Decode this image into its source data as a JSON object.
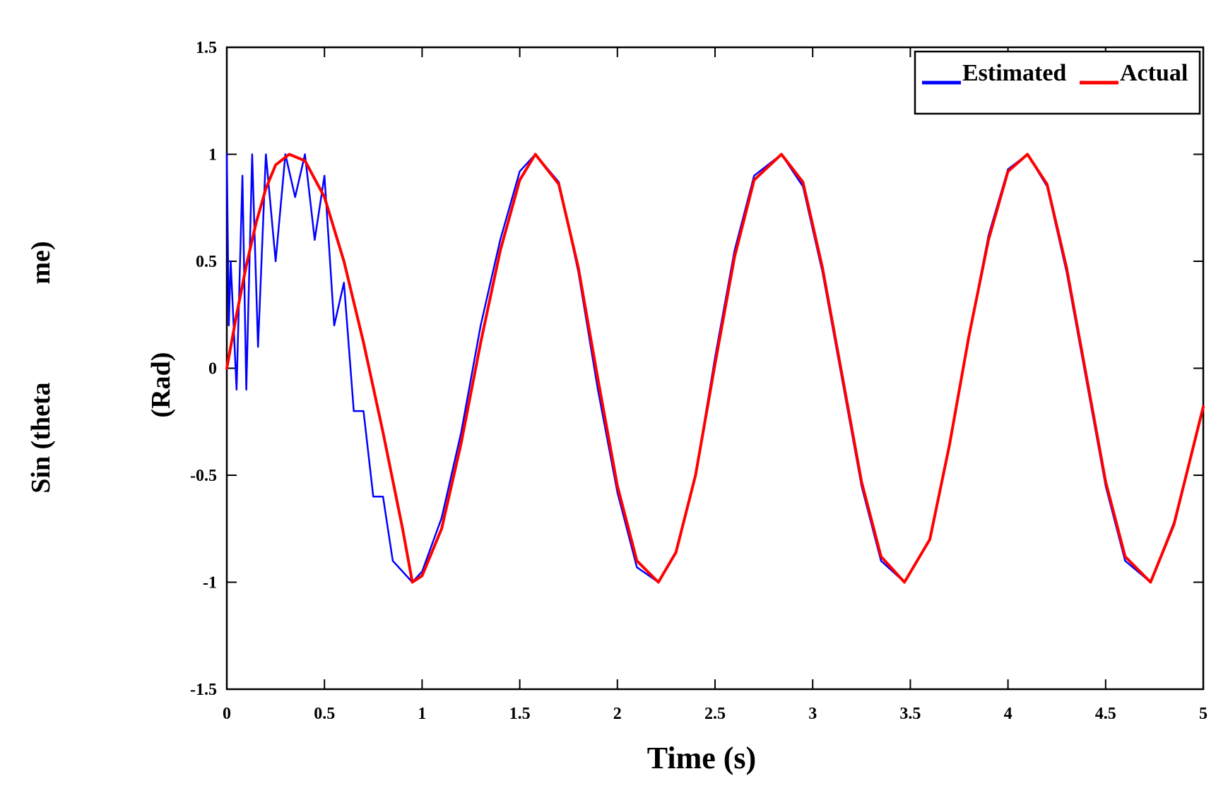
{
  "chart_data": {
    "type": "line",
    "title": "",
    "xlabel": "Time (s)",
    "ylabel_parts": [
      "Sin (theta",
      "me)",
      "(Rad)"
    ],
    "xlim": [
      0,
      5
    ],
    "ylim": [
      -1.5,
      1.5
    ],
    "x_ticks": [
      "0",
      "0.5",
      "1",
      "1.5",
      "2",
      "2.5",
      "3",
      "3.5",
      "4",
      "4.5",
      "5"
    ],
    "y_ticks": [
      "1.5",
      "1",
      "0.5",
      "0",
      "-0.5",
      "-1",
      "-1.5"
    ],
    "grid": false,
    "legend_position": "top-right",
    "series": [
      {
        "name": "Estimated",
        "color": "#0000ff",
        "note_visible": "high-frequency oscillation in first ~1.5 s, then converges to actual curve",
        "x": [
          0.0,
          0.01,
          0.02,
          0.05,
          0.08,
          0.1,
          0.13,
          0.16,
          0.2,
          0.25,
          0.3,
          0.35,
          0.4,
          0.45,
          0.5,
          0.55,
          0.6,
          0.65,
          0.7,
          0.75,
          0.8,
          0.85,
          0.9,
          0.95,
          1.0,
          1.1,
          1.2,
          1.3,
          1.4,
          1.5,
          1.58,
          1.7,
          1.8,
          1.9,
          2.0,
          2.1,
          2.21,
          2.3,
          2.4,
          2.5,
          2.6,
          2.7,
          2.84,
          2.95,
          3.05,
          3.15,
          3.25,
          3.35,
          3.47,
          3.6,
          3.7,
          3.8,
          3.9,
          4.0,
          4.1,
          4.2,
          4.3,
          4.4,
          4.5,
          4.6,
          4.73,
          4.85,
          5.0
        ],
        "y": [
          1.0,
          0.2,
          0.5,
          -0.1,
          0.9,
          -0.1,
          1.0,
          0.1,
          1.0,
          0.5,
          1.0,
          0.8,
          1.0,
          0.6,
          0.9,
          0.2,
          0.4,
          -0.2,
          -0.2,
          -0.6,
          -0.6,
          -0.9,
          -0.95,
          -1.0,
          -0.95,
          -0.7,
          -0.3,
          0.2,
          0.6,
          0.92,
          1.0,
          0.87,
          0.45,
          -0.1,
          -0.58,
          -0.93,
          -1.0,
          -0.86,
          -0.5,
          0.05,
          0.55,
          0.9,
          1.0,
          0.85,
          0.45,
          -0.05,
          -0.55,
          -0.9,
          -1.0,
          -0.8,
          -0.35,
          0.15,
          0.62,
          0.93,
          1.0,
          0.85,
          0.45,
          -0.05,
          -0.55,
          -0.9,
          -1.0,
          -0.72,
          -0.18
        ]
      },
      {
        "name": "Actual",
        "color": "#ff0000",
        "x": [
          0.0,
          0.05,
          0.1,
          0.15,
          0.2,
          0.25,
          0.32,
          0.4,
          0.5,
          0.6,
          0.7,
          0.8,
          0.9,
          0.95,
          1.0,
          1.1,
          1.2,
          1.3,
          1.4,
          1.5,
          1.58,
          1.7,
          1.8,
          1.9,
          2.0,
          2.1,
          2.21,
          2.3,
          2.4,
          2.5,
          2.6,
          2.7,
          2.84,
          2.95,
          3.05,
          3.15,
          3.25,
          3.35,
          3.47,
          3.6,
          3.7,
          3.8,
          3.9,
          4.0,
          4.1,
          4.2,
          4.3,
          4.4,
          4.5,
          4.6,
          4.73,
          4.85,
          5.0
        ],
        "y": [
          0.0,
          0.25,
          0.48,
          0.68,
          0.84,
          0.95,
          1.0,
          0.97,
          0.8,
          0.5,
          0.12,
          -0.3,
          -0.75,
          -1.0,
          -0.97,
          -0.75,
          -0.35,
          0.12,
          0.55,
          0.88,
          1.0,
          0.86,
          0.47,
          -0.05,
          -0.55,
          -0.9,
          -1.0,
          -0.86,
          -0.5,
          0.02,
          0.52,
          0.88,
          1.0,
          0.87,
          0.47,
          -0.03,
          -0.53,
          -0.88,
          -1.0,
          -0.8,
          -0.36,
          0.15,
          0.6,
          0.92,
          1.0,
          0.86,
          0.47,
          -0.03,
          -0.53,
          -0.88,
          -1.0,
          -0.73,
          -0.18
        ]
      }
    ]
  }
}
